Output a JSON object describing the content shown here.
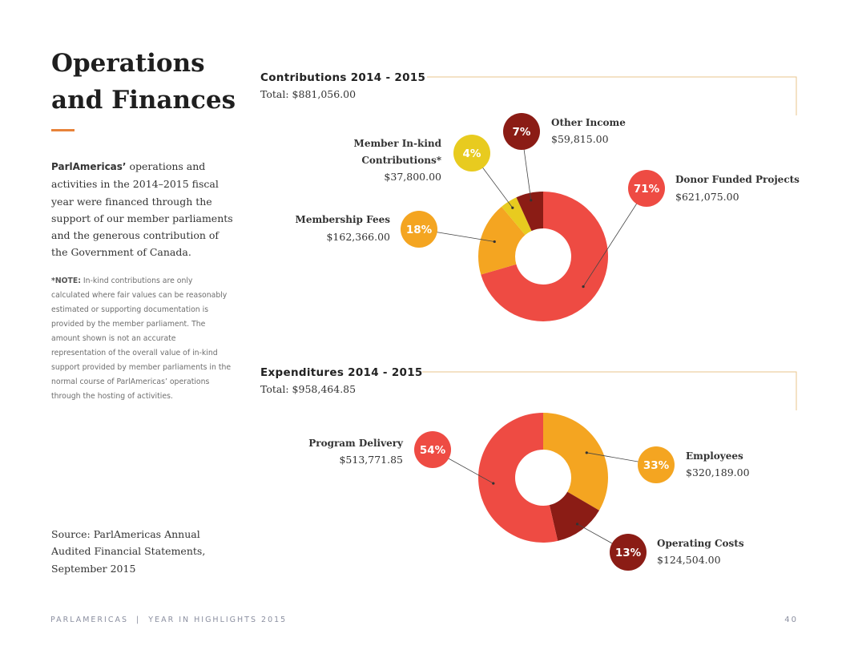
{
  "page": {
    "title_line1": "Operations",
    "title_line2": "and Finances",
    "intro_bold": "ParlAmericas’",
    "intro_rest": " operations and activities in the 2014–2015 fiscal year were financed through the support of our member parliaments and the generous contribution of the Government of Canada.",
    "note_label": "*NOTE:",
    "note_text": " In-kind contributions are only calculated where fair values can be reasonably estimated or supporting documentation is provided by the member parliament. The amount shown is not an accurate representation of the overall value of in-kind support provided by member parliaments in the normal course of ParlAmericas’ operations through the hosting of activities.",
    "source": "Source: ParlAmericas Annual Audited Financial Statements, September 2015",
    "footer_left": "PARLAMERICAS  |  YEAR IN HIGHLIGHTS 2015",
    "page_number": "40"
  },
  "chart_data": [
    {
      "type": "pie",
      "title": "Contributions 2014 - 2015",
      "subtitle": "Total: $881,056.00",
      "categories": [
        "Donor Funded Projects",
        "Membership Fees",
        "Member In-kind Contributions*",
        "Other Income"
      ],
      "values": [
        621075.0,
        162366.0,
        37800.0,
        59815.0
      ],
      "amount_labels": [
        "$621,075.00",
        "$162,366.00",
        "$37,800.00",
        "$59,815.00"
      ],
      "percent_labels": [
        "71%",
        "18%",
        "4%",
        "7%"
      ],
      "colors": [
        "#ee4b43",
        "#f4a521",
        "#e8cb1f",
        "#8b1c15"
      ]
    },
    {
      "type": "pie",
      "title": "Expenditures 2014 - 2015",
      "subtitle": "Total: $958,464.85",
      "categories": [
        "Employees",
        "Operating Costs",
        "Program Delivery"
      ],
      "values": [
        320189.0,
        124504.0,
        513771.85
      ],
      "amount_labels": [
        "$320,189.00",
        "$124,504.00",
        "$513,771.85"
      ],
      "percent_labels": [
        "33%",
        "13%",
        "54%"
      ],
      "colors": [
        "#f4a521",
        "#8b1c15",
        "#ee4b43"
      ]
    }
  ]
}
